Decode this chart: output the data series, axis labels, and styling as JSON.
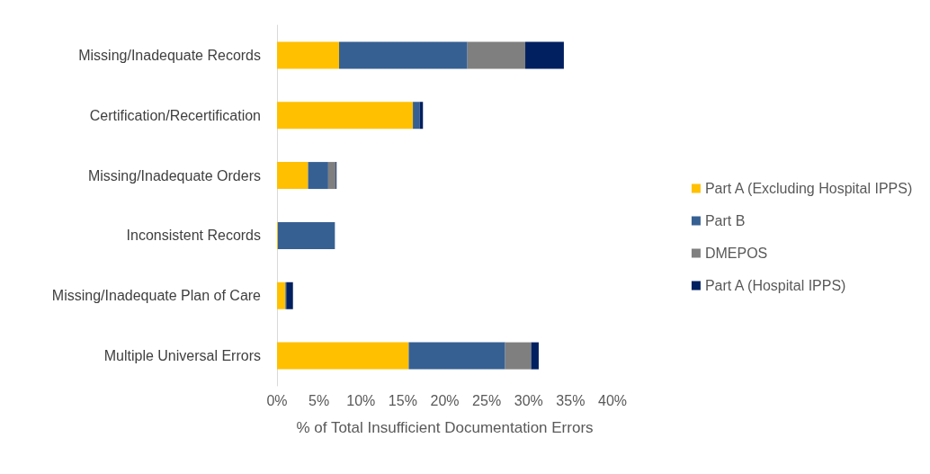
{
  "chart_data": {
    "type": "bar",
    "orientation": "horizontal",
    "stacked": true,
    "xlabel": "% of Total Insufficient Documentation Errors",
    "categories": [
      "Missing/Inadequate Records",
      "Certification/Recertification",
      "Missing/Inadequate Orders",
      "Inconsistent Records",
      "Missing/Inadequate Plan of Care",
      "Multiple Universal Errors"
    ],
    "series": [
      {
        "name": "Part A (Excluding Hospital IPPS)",
        "color": "#ffc000",
        "values": [
          7.4,
          16.2,
          3.7,
          0.1,
          1.0,
          15.7
        ]
      },
      {
        "name": "Part B",
        "color": "#376092",
        "values": [
          15.3,
          0.8,
          2.4,
          6.8,
          0.1,
          11.5
        ]
      },
      {
        "name": "DMEPOS",
        "color": "#7f7f7f",
        "values": [
          6.9,
          0,
          0.9,
          0,
          0,
          3.1
        ]
      },
      {
        "name": "Part A (Hospital IPPS)",
        "color": "#002060",
        "values": [
          4.6,
          0.4,
          0.1,
          0,
          0.8,
          0.9
        ]
      }
    ],
    "xlim": [
      0,
      40
    ],
    "xticks": [
      {
        "value": 0,
        "label": "0%"
      },
      {
        "value": 5,
        "label": "5%"
      },
      {
        "value": 10,
        "label": "10%"
      },
      {
        "value": 15,
        "label": "15%"
      },
      {
        "value": 20,
        "label": "20%"
      },
      {
        "value": 25,
        "label": "25%"
      },
      {
        "value": 30,
        "label": "30%"
      },
      {
        "value": 35,
        "label": "35%"
      },
      {
        "value": 40,
        "label": "40%"
      }
    ],
    "grid": false,
    "legend": "right"
  }
}
